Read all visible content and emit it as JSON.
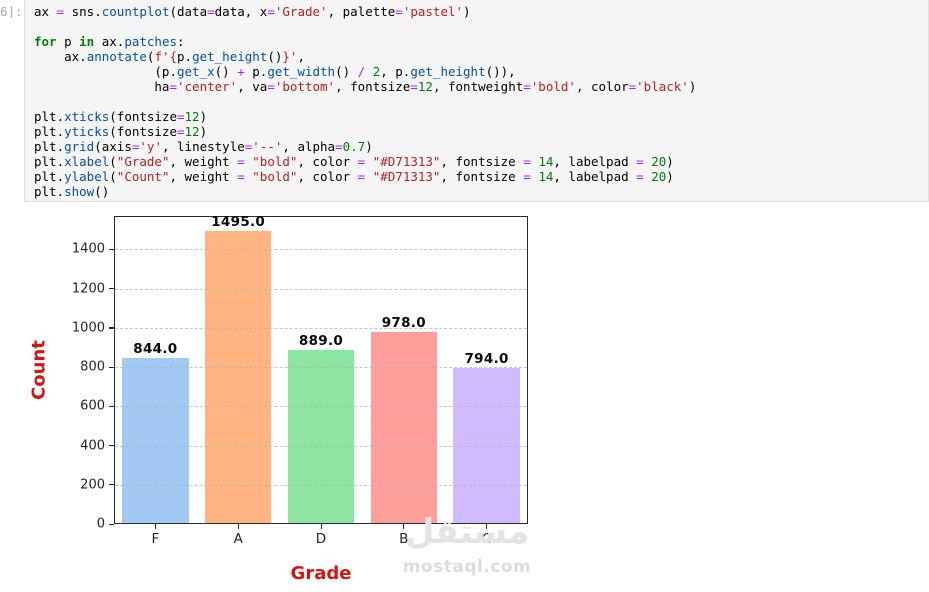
{
  "notebook": {
    "prompt": "6]:",
    "code": {
      "token_colors": {
        "plain": "#000000",
        "keyword": "#008000",
        "string": "#BA2121",
        "number": "#008000",
        "operator": "#AA22FF",
        "function": "#0550AE"
      },
      "lines": [
        [
          [
            "p",
            "ax "
          ],
          [
            "o",
            "="
          ],
          [
            "p",
            " sns."
          ],
          [
            "f",
            "countplot"
          ],
          [
            "p",
            "(data"
          ],
          [
            "o",
            "="
          ],
          [
            "p",
            "data, x"
          ],
          [
            "o",
            "="
          ],
          [
            "s",
            "'Grade'"
          ],
          [
            "p",
            ", palette"
          ],
          [
            "o",
            "="
          ],
          [
            "s",
            "'pastel'"
          ],
          [
            "p",
            ")"
          ]
        ],
        [],
        [
          [
            "k",
            "for"
          ],
          [
            "p",
            " p "
          ],
          [
            "k",
            "in"
          ],
          [
            "p",
            " ax."
          ],
          [
            "f",
            "patches"
          ],
          [
            "p",
            ":"
          ]
        ],
        [
          [
            "p",
            "    ax."
          ],
          [
            "f",
            "annotate"
          ],
          [
            "p",
            "("
          ],
          [
            "s",
            "f'{"
          ],
          [
            "p",
            "p."
          ],
          [
            "f",
            "get_height"
          ],
          [
            "p",
            "()"
          ],
          [
            "s",
            "}'"
          ],
          [
            "p",
            ","
          ]
        ],
        [
          [
            "p",
            "                (p."
          ],
          [
            "f",
            "get_x"
          ],
          [
            "p",
            "() "
          ],
          [
            "o",
            "+"
          ],
          [
            "p",
            " p."
          ],
          [
            "f",
            "get_width"
          ],
          [
            "p",
            "() "
          ],
          [
            "o",
            "/"
          ],
          [
            "p",
            " "
          ],
          [
            "n",
            "2"
          ],
          [
            "p",
            ", p."
          ],
          [
            "f",
            "get_height"
          ],
          [
            "p",
            "()),"
          ]
        ],
        [
          [
            "p",
            "                ha"
          ],
          [
            "o",
            "="
          ],
          [
            "s",
            "'center'"
          ],
          [
            "p",
            ", va"
          ],
          [
            "o",
            "="
          ],
          [
            "s",
            "'bottom'"
          ],
          [
            "p",
            ", fontsize"
          ],
          [
            "o",
            "="
          ],
          [
            "n",
            "12"
          ],
          [
            "p",
            ", fontweight"
          ],
          [
            "o",
            "="
          ],
          [
            "s",
            "'bold'"
          ],
          [
            "p",
            ", color"
          ],
          [
            "o",
            "="
          ],
          [
            "s",
            "'black'"
          ],
          [
            "p",
            ")"
          ]
        ],
        [],
        [
          [
            "p",
            "plt."
          ],
          [
            "f",
            "xticks"
          ],
          [
            "p",
            "(fontsize"
          ],
          [
            "o",
            "="
          ],
          [
            "n",
            "12"
          ],
          [
            "p",
            ")"
          ]
        ],
        [
          [
            "p",
            "plt."
          ],
          [
            "f",
            "yticks"
          ],
          [
            "p",
            "(fontsize"
          ],
          [
            "o",
            "="
          ],
          [
            "n",
            "12"
          ],
          [
            "p",
            ")"
          ]
        ],
        [
          [
            "p",
            "plt."
          ],
          [
            "f",
            "grid"
          ],
          [
            "p",
            "(axis"
          ],
          [
            "o",
            "="
          ],
          [
            "s",
            "'y'"
          ],
          [
            "p",
            ", linestyle"
          ],
          [
            "o",
            "="
          ],
          [
            "s",
            "'--'"
          ],
          [
            "p",
            ", alpha"
          ],
          [
            "o",
            "="
          ],
          [
            "n",
            "0.7"
          ],
          [
            "p",
            ")"
          ]
        ],
        [
          [
            "p",
            "plt."
          ],
          [
            "f",
            "xlabel"
          ],
          [
            "p",
            "("
          ],
          [
            "s",
            "\"Grade\""
          ],
          [
            "p",
            ", weight "
          ],
          [
            "o",
            "="
          ],
          [
            "p",
            " "
          ],
          [
            "s",
            "\"bold\""
          ],
          [
            "p",
            ", color "
          ],
          [
            "o",
            "="
          ],
          [
            "p",
            " "
          ],
          [
            "s",
            "\"#D71313\""
          ],
          [
            "p",
            ", fontsize "
          ],
          [
            "o",
            "="
          ],
          [
            "p",
            " "
          ],
          [
            "n",
            "14"
          ],
          [
            "p",
            ", labelpad "
          ],
          [
            "o",
            "="
          ],
          [
            "p",
            " "
          ],
          [
            "n",
            "20"
          ],
          [
            "p",
            ")"
          ]
        ],
        [
          [
            "p",
            "plt."
          ],
          [
            "f",
            "ylabel"
          ],
          [
            "p",
            "("
          ],
          [
            "s",
            "\"Count\""
          ],
          [
            "p",
            ", weight "
          ],
          [
            "o",
            "="
          ],
          [
            "p",
            " "
          ],
          [
            "s",
            "\"bold\""
          ],
          [
            "p",
            ", color "
          ],
          [
            "o",
            "="
          ],
          [
            "p",
            " "
          ],
          [
            "s",
            "\"#D71313\""
          ],
          [
            "p",
            ", fontsize "
          ],
          [
            "o",
            "="
          ],
          [
            "p",
            " "
          ],
          [
            "n",
            "14"
          ],
          [
            "p",
            ", labelpad "
          ],
          [
            "o",
            "="
          ],
          [
            "p",
            " "
          ],
          [
            "n",
            "20"
          ],
          [
            "p",
            ")"
          ]
        ],
        [
          [
            "p",
            "plt."
          ],
          [
            "f",
            "show"
          ],
          [
            "p",
            "()"
          ]
        ]
      ]
    }
  },
  "chart_data": {
    "type": "bar",
    "title": "",
    "categories": [
      "F",
      "A",
      "D",
      "B",
      "C"
    ],
    "values": [
      844,
      1495,
      889,
      978,
      794
    ],
    "bar_labels": [
      "844.0",
      "1495.0",
      "889.0",
      "978.0",
      "794.0"
    ],
    "bar_colors": [
      "#a1c9f4",
      "#ffb482",
      "#8de5a1",
      "#ff9f9b",
      "#d0bbff"
    ],
    "palette": "pastel",
    "xlabel": "Grade",
    "ylabel": "Count",
    "label_color": "#D71313",
    "ylim": [
      0,
      1570
    ],
    "yticks": [
      0,
      200,
      400,
      600,
      800,
      1000,
      1200,
      1400
    ],
    "grid": {
      "axis": "y",
      "linestyle": "--",
      "alpha": 0.7,
      "on": true
    },
    "legend": "none",
    "bar_width_fraction": 0.8
  },
  "watermark": {
    "logo": "مستقل",
    "url": "mostaql.com"
  }
}
